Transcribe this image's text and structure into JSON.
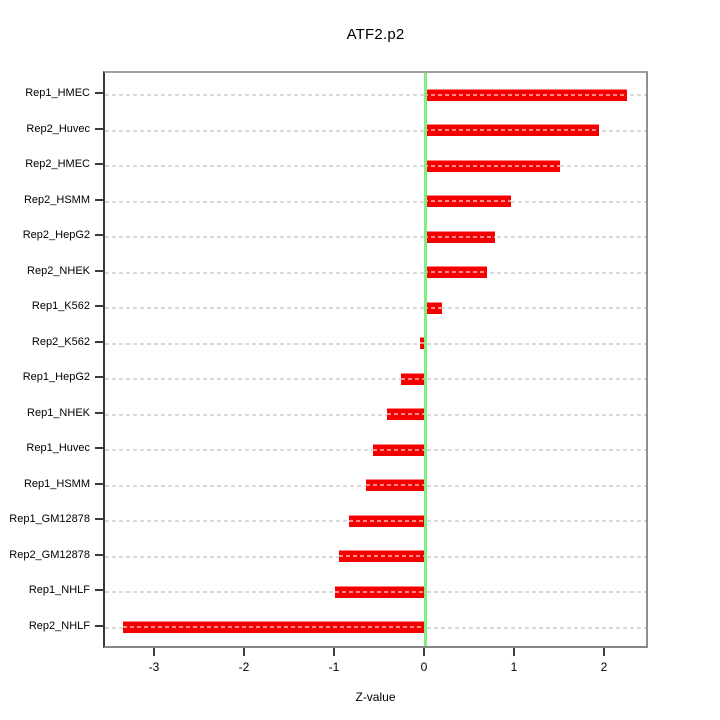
{
  "chart_data": {
    "type": "bar",
    "orientation": "horizontal",
    "title": "ATF2.p2",
    "xlabel": "Z-value",
    "ylabel": "",
    "categories": [
      "Rep1_HMEC",
      "Rep2_Huvec",
      "Rep2_HMEC",
      "Rep2_HSMM",
      "Rep2_HepG2",
      "Rep2_NHEK",
      "Rep1_K562",
      "Rep2_K562",
      "Rep1_HepG2",
      "Rep1_NHEK",
      "Rep1_Huvec",
      "Rep1_HSMM",
      "Rep1_GM12878",
      "Rep2_GM12878",
      "Rep1_NHLF",
      "Rep2_NHLF"
    ],
    "values": [
      2.26,
      1.94,
      1.51,
      0.97,
      0.79,
      0.7,
      0.2,
      -0.04,
      -0.26,
      -0.41,
      -0.57,
      -0.64,
      -0.83,
      -0.94,
      -0.99,
      -3.34
    ],
    "x_ticks": [
      -3,
      -2,
      -1,
      0,
      1,
      2
    ],
    "xlim": [
      -3.57,
      2.49
    ],
    "grid": "dashed-horizontal-per-row",
    "legend": "none",
    "zero_reference_line": 0,
    "bar_color": "#f40000",
    "zero_line_color": "#80ee80",
    "grid_color": "#d9d9d9"
  }
}
